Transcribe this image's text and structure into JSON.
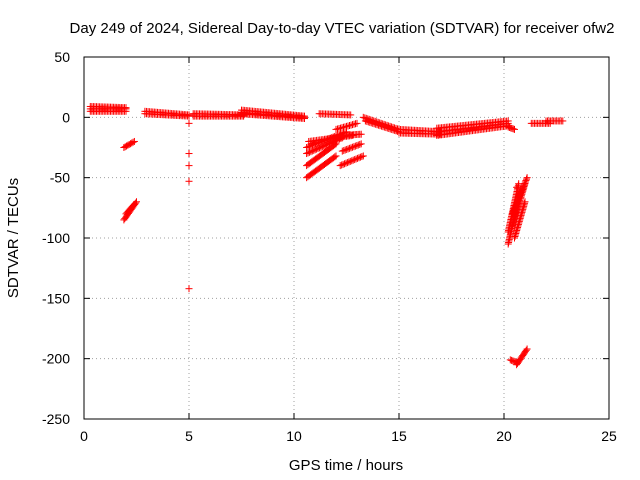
{
  "chart_data": {
    "type": "scatter",
    "title": "Day 249 of 2024, Sidereal Day-to-day VTEC variation (SDTVAR) for receiver ofw2",
    "xlabel": "GPS time / hours",
    "ylabel": "SDTVAR / TECUs",
    "xlim": [
      0,
      25
    ],
    "ylim": [
      -250,
      50
    ],
    "xticks": [
      0,
      5,
      10,
      15,
      20,
      25
    ],
    "yticks": [
      50,
      0,
      -50,
      -100,
      -150,
      -200,
      -250
    ],
    "grid": true,
    "marker": "+",
    "color": "#ff0000",
    "segments": [
      {
        "x0": 0.3,
        "y0": 7,
        "x1": 2.0,
        "y1": 7
      },
      {
        "x0": 0.3,
        "y0": 9,
        "x1": 2.0,
        "y1": 8
      },
      {
        "x0": 0.3,
        "y0": 5,
        "x1": 2.0,
        "y1": 5
      },
      {
        "x0": 1.9,
        "y0": -25,
        "x1": 2.4,
        "y1": -20
      },
      {
        "x0": 1.9,
        "y0": -85,
        "x1": 2.5,
        "y1": -70
      },
      {
        "x0": 2.0,
        "y0": -80,
        "x1": 2.4,
        "y1": -72
      },
      {
        "x0": 2.9,
        "y0": 5,
        "x1": 5.0,
        "y1": 2
      },
      {
        "x0": 2.9,
        "y0": 3,
        "x1": 5.0,
        "y1": 1
      },
      {
        "x0": 5.2,
        "y0": 3,
        "x1": 7.6,
        "y1": 2
      },
      {
        "x0": 5.2,
        "y0": 1,
        "x1": 7.6,
        "y1": 1
      },
      {
        "x0": 7.5,
        "y0": 6,
        "x1": 10.5,
        "y1": 1
      },
      {
        "x0": 7.5,
        "y0": 3,
        "x1": 10.5,
        "y1": -1
      },
      {
        "x0": 7.5,
        "y0": 4,
        "x1": 10.5,
        "y1": 0
      },
      {
        "x0": 11.2,
        "y0": 3,
        "x1": 12.7,
        "y1": 2
      },
      {
        "x0": 10.7,
        "y0": -20,
        "x1": 12.8,
        "y1": -15
      },
      {
        "x0": 10.6,
        "y0": -25,
        "x1": 12.5,
        "y1": -12
      },
      {
        "x0": 10.6,
        "y0": -30,
        "x1": 12.3,
        "y1": -17
      },
      {
        "x0": 10.6,
        "y0": -40,
        "x1": 12.0,
        "y1": -22
      },
      {
        "x0": 10.6,
        "y0": -50,
        "x1": 12.0,
        "y1": -32
      },
      {
        "x0": 12.0,
        "y0": -10,
        "x1": 13.0,
        "y1": -5
      },
      {
        "x0": 12.3,
        "y0": -28,
        "x1": 13.2,
        "y1": -22
      },
      {
        "x0": 12.2,
        "y0": -40,
        "x1": 13.3,
        "y1": -32
      },
      {
        "x0": 12.2,
        "y0": -15,
        "x1": 13.2,
        "y1": -14
      },
      {
        "x0": 13.3,
        "y0": 0,
        "x1": 15.0,
        "y1": -10
      },
      {
        "x0": 13.4,
        "y0": -3,
        "x1": 15.0,
        "y1": -12
      },
      {
        "x0": 15.0,
        "y0": -13,
        "x1": 17.0,
        "y1": -14
      },
      {
        "x0": 15.0,
        "y0": -10,
        "x1": 17.0,
        "y1": -12
      },
      {
        "x0": 16.8,
        "y0": -15,
        "x1": 20.2,
        "y1": -7
      },
      {
        "x0": 16.8,
        "y0": -12,
        "x1": 20.2,
        "y1": -5
      },
      {
        "x0": 16.8,
        "y0": -9,
        "x1": 20.2,
        "y1": -3
      },
      {
        "x0": 20.2,
        "y0": -8,
        "x1": 20.5,
        "y1": -10
      },
      {
        "x0": 21.3,
        "y0": -5,
        "x1": 22.2,
        "y1": -5
      },
      {
        "x0": 22.0,
        "y0": -3,
        "x1": 22.8,
        "y1": -3
      },
      {
        "x0": 20.2,
        "y0": -105,
        "x1": 20.8,
        "y1": -60
      },
      {
        "x0": 20.2,
        "y0": -95,
        "x1": 20.7,
        "y1": -55
      },
      {
        "x0": 20.4,
        "y0": -90,
        "x1": 21.0,
        "y1": -55
      },
      {
        "x0": 20.4,
        "y0": -80,
        "x1": 21.1,
        "y1": -50
      },
      {
        "x0": 20.5,
        "y0": -100,
        "x1": 21.0,
        "y1": -70
      },
      {
        "x0": 20.3,
        "y0": -201,
        "x1": 20.6,
        "y1": -203
      },
      {
        "x0": 20.6,
        "y0": -205,
        "x1": 21.1,
        "y1": -192
      }
    ],
    "points": [
      {
        "x": 5.0,
        "y": -5
      },
      {
        "x": 5.0,
        "y": -30
      },
      {
        "x": 5.0,
        "y": -40
      },
      {
        "x": 5.0,
        "y": -53
      },
      {
        "x": 5.0,
        "y": -142
      },
      {
        "x": 20.6,
        "y": -58
      },
      {
        "x": 20.9,
        "y": -60
      }
    ]
  }
}
